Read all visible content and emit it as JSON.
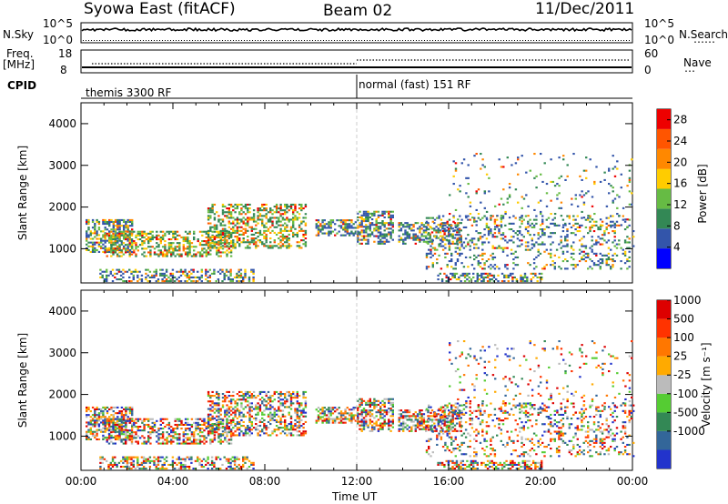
{
  "header": {
    "station": "Syowa East (fitACF)",
    "beam": "Beam 02",
    "date": "11/Dec/2011"
  },
  "top_panels": {
    "nsky_label": "N.Sky",
    "nsky_ticks": [
      "10^5",
      "10^0"
    ],
    "nsearch_label": "N.Search",
    "nsearch_ticks": [
      "10^5",
      "10^0"
    ],
    "freq_label_1": "Freq.",
    "freq_label_2": "[MHz]",
    "freq_ticks": [
      "18",
      "8"
    ],
    "nave_label": "Nave",
    "nave_ticks": [
      "60",
      "0"
    ],
    "cpid_label": "CPID",
    "cpid_segments": [
      {
        "name": "themis 3300 RF",
        "start_hour": 0
      },
      {
        "name": "normal (fast) 151 RF",
        "start_hour": 12.0
      }
    ]
  },
  "chart_data": [
    {
      "type": "heatmap",
      "title": "Power",
      "ylabel": "Slant Range [km]",
      "ylim": [
        180,
        4500
      ],
      "yticks": [
        "4000",
        "3000",
        "2000",
        "1000"
      ],
      "ytick_values": [
        4000,
        3000,
        2000,
        1000
      ],
      "colorbar_label": "Power [dB]",
      "colorbar_ticks": [
        "28",
        "24",
        "20",
        "16",
        "12",
        "8",
        "4"
      ],
      "colorbar_range": [
        0,
        30
      ],
      "colors": [
        "#0000ff",
        "#3355aa",
        "#338855",
        "#66bb44",
        "#ffcc00",
        "#ff8800",
        "#ff5500",
        "#ee0000"
      ]
    },
    {
      "type": "heatmap",
      "title": "Velocity",
      "ylabel": "Slant Range [km]",
      "ylim": [
        180,
        4500
      ],
      "yticks": [
        "4000",
        "3000",
        "2000",
        "1000"
      ],
      "ytick_values": [
        4000,
        3000,
        2000,
        1000
      ],
      "colorbar_label": "Velocity [m s⁻¹]",
      "colorbar_ticks": [
        "1000",
        "500",
        "100",
        "25",
        "-25",
        "-100",
        "-500",
        "-1000"
      ],
      "colors": [
        "#2233cc",
        "#336699",
        "#338855",
        "#55cc33",
        "#bbbbbb",
        "#ffaa00",
        "#ff7700",
        "#ff3300",
        "#dd0000"
      ]
    }
  ],
  "xaxis": {
    "label": "Time UT",
    "ticks": [
      "00:00",
      "04:00",
      "08:00",
      "12:00",
      "16:00",
      "20:00",
      "00:00"
    ]
  }
}
